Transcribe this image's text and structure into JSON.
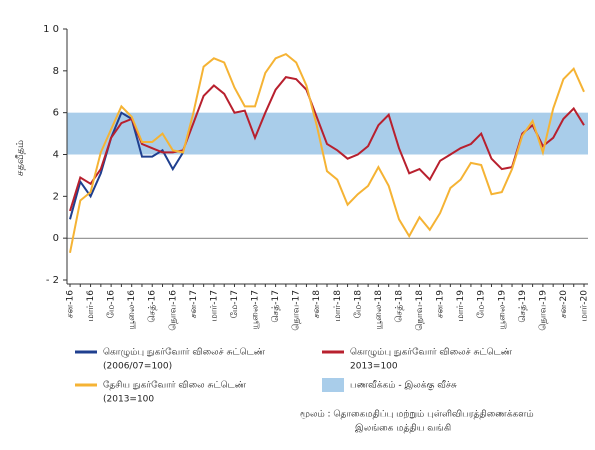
{
  "chart_data": {
    "type": "line",
    "y_label": "சதவீதம்",
    "categories": [
      "சன-16",
      null,
      "மார்-16",
      null,
      "மே-16",
      null,
      "யூலை-16",
      null,
      "செத்-16",
      null,
      "நொவ-16",
      null,
      "சன-17",
      null,
      "மார்-17",
      null,
      "மே-17",
      null,
      "யூலை-17",
      null,
      "செத்-17",
      null,
      "நொவ-17",
      null,
      "சன-18",
      null,
      "மார்-18",
      null,
      "மே-18",
      null,
      "யூலை-18",
      null,
      "செத்-18",
      null,
      "நொவ-18",
      null,
      "சன-19",
      null,
      "மார்-19",
      null,
      "மே-19",
      null,
      "யூலை-19",
      null,
      "செத்-19",
      null,
      "நொவ-19",
      null,
      "சன-20",
      null,
      "மார்-20"
    ],
    "ylim": [
      -2,
      10
    ],
    "yticks": [
      {
        "value": -2,
        "label": "- 2"
      },
      0,
      2,
      4,
      6,
      8,
      {
        "value": 10,
        "label": "1 0"
      }
    ],
    "target_band": {
      "name": "பணவீக்கம் - இலக்கு வீச்சு",
      "color": "#a9cdea",
      "range": [
        4,
        6
      ]
    },
    "series": [
      {
        "name": [
          "கொழும்பு நுகர்வோர் விலைச் சுட்டெண்",
          "(2006/07=100)"
        ],
        "color": "#1f3f8f",
        "values": [
          0.9,
          2.7,
          2.0,
          3.1,
          4.8,
          6.0,
          5.7,
          3.9,
          3.9,
          4.2,
          3.3,
          4.1,
          null,
          null,
          null,
          null,
          null,
          null,
          null,
          null,
          null,
          null,
          null,
          null,
          null,
          null,
          null,
          null,
          null,
          null,
          null,
          null,
          null,
          null,
          null,
          null,
          null,
          null,
          null,
          null,
          null,
          null,
          null,
          null,
          null,
          null,
          null,
          null,
          null,
          null,
          null
        ]
      },
      {
        "name": [
          "கொழும்பு நுகர்வோர் விலைச் சுட்டெண்",
          "2013=100"
        ],
        "color": "#b8202e",
        "values": [
          1.3,
          2.9,
          2.6,
          3.3,
          4.8,
          5.5,
          5.7,
          4.5,
          4.3,
          4.1,
          4.1,
          4.2,
          5.5,
          6.8,
          7.3,
          6.9,
          6.0,
          6.1,
          4.8,
          6.0,
          7.1,
          7.7,
          7.6,
          7.1,
          5.8,
          4.5,
          4.2,
          3.8,
          4.0,
          4.4,
          5.4,
          5.9,
          4.3,
          3.1,
          3.3,
          2.8,
          3.7,
          4.0,
          4.3,
          4.5,
          5.0,
          3.8,
          3.3,
          3.4,
          5.0,
          5.4,
          4.4,
          4.8,
          5.7,
          6.2,
          5.4
        ]
      },
      {
        "name": [
          "தேசிய நுகர்வோர் விலை சுட்டெண்",
          "(2013=100"
        ],
        "color": "#f5b334",
        "values": [
          -0.7,
          1.8,
          2.2,
          4.1,
          5.2,
          6.3,
          5.8,
          4.6,
          4.6,
          5.0,
          4.2,
          4.1,
          6.0,
          8.2,
          8.6,
          8.4,
          7.2,
          6.3,
          6.3,
          7.9,
          8.6,
          8.8,
          8.4,
          7.3,
          5.4,
          3.2,
          2.8,
          1.6,
          2.1,
          2.5,
          3.4,
          2.5,
          0.9,
          0.1,
          1.0,
          0.4,
          1.2,
          2.4,
          2.8,
          3.6,
          3.5,
          2.1,
          2.2,
          3.3,
          4.9,
          5.6,
          4.1,
          6.2,
          7.6,
          8.1,
          7.0
        ]
      }
    ],
    "source": [
      "மூலம் : தொகைமதிப்பு மற்றும் புள்ளிவிபரத்திணைக்களம்",
      "இலங்கை மத்திய வங்கி"
    ]
  }
}
